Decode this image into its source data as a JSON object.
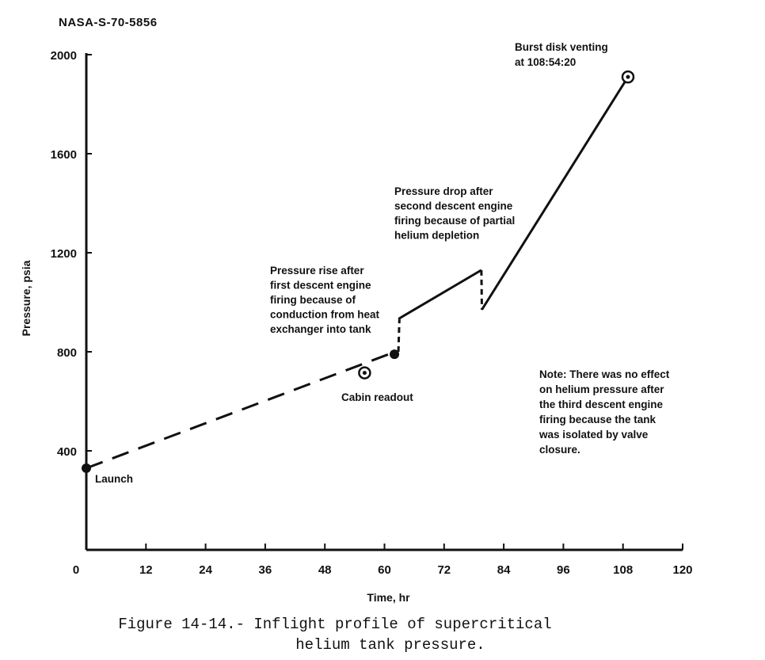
{
  "document_id": "NASA-S-70-5856",
  "caption": {
    "line1": "Figure 14-14.- Inflight profile of supercritical",
    "line2": "helium tank pressure."
  },
  "chart_data": {
    "type": "line",
    "title": "",
    "xlabel": "Time, hr",
    "ylabel": "Pressure, psia",
    "xlim": [
      0,
      120
    ],
    "ylim": [
      0,
      2000
    ],
    "x_ticks": [
      0,
      12,
      24,
      36,
      48,
      60,
      72,
      84,
      96,
      108,
      120
    ],
    "y_ticks": [
      400,
      800,
      1200,
      1600,
      2000
    ],
    "segments": [
      {
        "style": "dashed",
        "points": [
          [
            0,
            330
          ],
          [
            61.5,
            795
          ]
        ]
      },
      {
        "style": "dashed",
        "points": [
          [
            62.8,
            800
          ],
          [
            63.0,
            930
          ]
        ]
      },
      {
        "style": "solid",
        "points": [
          [
            63.0,
            930
          ],
          [
            63.0,
            935
          ],
          [
            79.5,
            1130
          ]
        ]
      },
      {
        "style": "dashed",
        "points": [
          [
            79.5,
            1130
          ],
          [
            79.6,
            970
          ]
        ]
      },
      {
        "style": "solid",
        "points": [
          [
            79.6,
            970
          ],
          [
            109,
            1910
          ]
        ]
      }
    ],
    "markers": [
      {
        "x": 0,
        "y": 330,
        "style": "filled"
      },
      {
        "x": 56,
        "y": 715,
        "style": "ring"
      },
      {
        "x": 62,
        "y": 790,
        "style": "filled"
      },
      {
        "x": 109,
        "y": 1910,
        "style": "ring"
      }
    ],
    "annotations": [
      {
        "id": "launch",
        "lines": [
          "Launch"
        ]
      },
      {
        "id": "cabin",
        "lines": [
          "Cabin readout"
        ]
      },
      {
        "id": "burst",
        "lines": [
          "Burst disk venting",
          "at 108:54:20"
        ]
      },
      {
        "id": "rise",
        "lines": [
          "Pressure rise after",
          "first descent engine",
          "firing because of",
          "conduction from heat",
          "exchanger into tank"
        ]
      },
      {
        "id": "drop",
        "lines": [
          "Pressure drop after",
          "second descent engine",
          "firing because of partial",
          "helium depletion"
        ]
      },
      {
        "id": "note",
        "lines": [
          "Note: There was no effect",
          "on helium pressure after",
          "the third descent engine",
          "firing because the tank",
          "was isolated by valve",
          "closure."
        ]
      }
    ]
  }
}
